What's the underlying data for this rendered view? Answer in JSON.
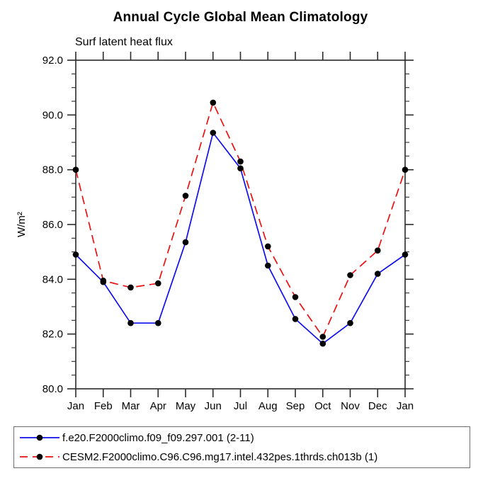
{
  "page": {
    "background": "#ffffff"
  },
  "chart_data": {
    "type": "line",
    "title": "Annual Cycle Global Mean Climatology",
    "subtitle": "Surf latent heat flux",
    "ylabel": "W/m²",
    "xlabel": "",
    "x": [
      "Jan",
      "Feb",
      "Mar",
      "Apr",
      "May",
      "Jun",
      "Jul",
      "Aug",
      "Sep",
      "Oct",
      "Nov",
      "Dec",
      "Jan"
    ],
    "ylim": [
      80.0,
      92.0
    ],
    "ytick_major": 2.0,
    "ytick_minor": 0.5,
    "ytick_labels": [
      "80.0",
      "82.0",
      "84.0",
      "86.0",
      "88.0",
      "90.0",
      "92.0"
    ],
    "grid": false,
    "legend_position": "bottom-left",
    "axis_color": "#2a2a2a",
    "marker_color": "#000000",
    "series": [
      {
        "name": "f.e20.F2000climo.f09_f09.297.001 (2-11)",
        "color": "#0f0fee",
        "style": "solid",
        "marker": "circle",
        "values": [
          84.9,
          83.9,
          82.4,
          82.4,
          85.35,
          89.35,
          88.05,
          84.5,
          82.55,
          81.65,
          82.4,
          84.2,
          84.9
        ]
      },
      {
        "name": "CESM2.F2000climo.C96.C96.mg17.intel.432pes.1thrds.ch013b (1)",
        "color": "#ee1010",
        "style": "dashed",
        "marker": "circle",
        "values": [
          88.0,
          83.95,
          83.7,
          83.85,
          87.05,
          90.45,
          88.3,
          85.2,
          83.35,
          81.9,
          84.15,
          85.05,
          88.0
        ]
      }
    ]
  },
  "legend": {
    "items": [
      {
        "label": "f.e20.F2000climo.f09_f09.297.001 (2-11)",
        "line_color": "#0f0fee",
        "line_style": "solid",
        "marker": "black-circle"
      },
      {
        "label": "CESM2.F2000climo.C96.C96.mg17.intel.432pes.1thrds.ch013b (1)",
        "line_color": "#ee1010",
        "line_style": "dashed",
        "marker": "black-circle"
      }
    ]
  }
}
